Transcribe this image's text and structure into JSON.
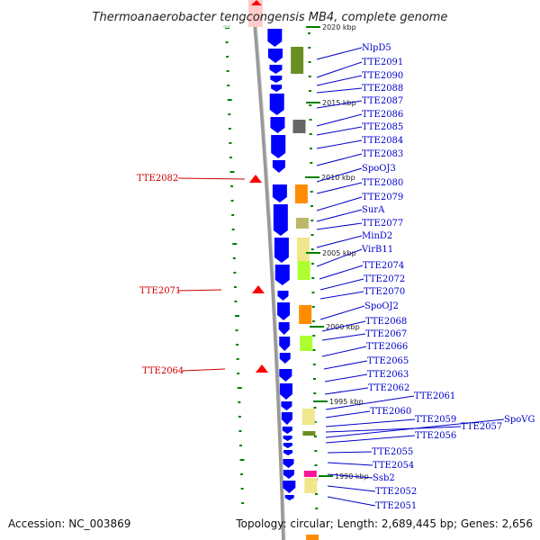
{
  "title": "Thermoanaerobacter tengcongensis MB4, complete genome",
  "accession": "Accession: NC_003869",
  "topology": "Topology: circular; Length: 2,689,445 bp; Genes: 2,656",
  "colors": {
    "forward": "#0000ff",
    "reverse": "#ff0000",
    "right_label": "#0000cc",
    "left_label": "#cc0000",
    "tick": "#008000",
    "backbone": "#999999"
  },
  "ruler": [
    {
      "label": "2020 kbp"
    },
    {
      "label": "2015 kbp"
    },
    {
      "label": "2010 kbp"
    },
    {
      "label": "2005 kbp"
    },
    {
      "label": "2000 kbp"
    },
    {
      "label": "1995 kbp"
    },
    {
      "label": "1990 kbp"
    }
  ],
  "left_genes": [
    {
      "name": "TTE2082"
    },
    {
      "name": "TTE2071"
    },
    {
      "name": "TTE2064"
    }
  ],
  "right_genes": [
    {
      "name": "NlpD5"
    },
    {
      "name": "TTE2091"
    },
    {
      "name": "TTE2090"
    },
    {
      "name": "TTE2088"
    },
    {
      "name": "TTE2087"
    },
    {
      "name": "TTE2086"
    },
    {
      "name": "TTE2085"
    },
    {
      "name": "TTE2084"
    },
    {
      "name": "TTE2083"
    },
    {
      "name": "SpoOJ3"
    },
    {
      "name": "TTE2080"
    },
    {
      "name": "TTE2079"
    },
    {
      "name": "SurA"
    },
    {
      "name": "TTE2077"
    },
    {
      "name": "MinD2"
    },
    {
      "name": "VirB11"
    },
    {
      "name": "TTE2074"
    },
    {
      "name": "TTE2072"
    },
    {
      "name": "TTE2070"
    },
    {
      "name": "SpoOJ2"
    },
    {
      "name": "TTE2068"
    },
    {
      "name": "TTE2067"
    },
    {
      "name": "TTE2066"
    },
    {
      "name": "TTE2065"
    },
    {
      "name": "TTE2063"
    },
    {
      "name": "TTE2062"
    },
    {
      "name": "TTE2061"
    },
    {
      "name": "TTE2060"
    },
    {
      "name": "TTE2059"
    },
    {
      "name": "TTE2057"
    },
    {
      "name": "SpoVG"
    },
    {
      "name": "TTE2056"
    },
    {
      "name": "TTE2055"
    },
    {
      "name": "TTE2054"
    },
    {
      "name": "Ssb2"
    },
    {
      "name": "TTE2052"
    },
    {
      "name": "TTE2051"
    }
  ]
}
